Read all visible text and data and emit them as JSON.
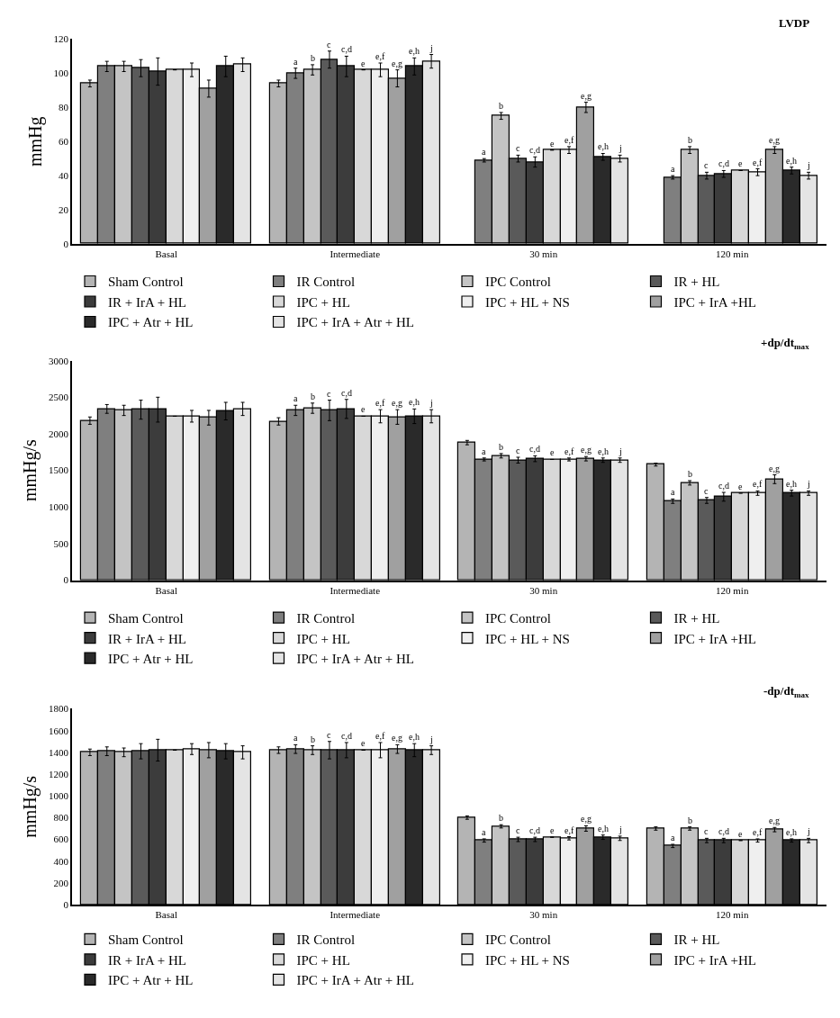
{
  "chart_data": [
    {
      "type": "bar",
      "title": "LVDP",
      "ylabel": "mmHg",
      "categories": [
        "Basal",
        "Intermediate",
        "30 min",
        "120 min"
      ],
      "ylim": [
        0,
        120
      ],
      "yticks": [
        0,
        20,
        40,
        60,
        80,
        100,
        120
      ],
      "legend": "bottom",
      "series": [
        {
          "name": "Sham Control",
          "color": "#b4b4b4",
          "values": [
            94,
            94,
            null,
            null
          ],
          "errors": [
            2,
            2,
            null,
            null
          ],
          "value_labels": [
            null,
            null,
            null,
            null
          ]
        },
        {
          "name": "IR Control",
          "color": "#7f7f7f",
          "values": [
            104,
            100,
            49,
            39
          ],
          "errors": [
            3,
            3,
            1,
            1
          ],
          "value_labels": [
            null,
            "a",
            "a",
            "a"
          ]
        },
        {
          "name": "IPC Control",
          "color": "#c4c4c4",
          "values": [
            104,
            102,
            75,
            55
          ],
          "errors": [
            3,
            3,
            2,
            2
          ],
          "value_labels": [
            null,
            "b",
            "b",
            "b"
          ]
        },
        {
          "name": "IR + HL",
          "color": "#5a5a5a",
          "values": [
            103,
            108,
            50,
            40
          ],
          "errors": [
            5,
            5,
            2,
            2
          ],
          "value_labels": [
            null,
            "c",
            "c",
            "c"
          ]
        },
        {
          "name": "IR + IrA + HL",
          "color": "#3c3c3c",
          "values": [
            101,
            104,
            48,
            41
          ],
          "errors": [
            8,
            6,
            3,
            2
          ],
          "value_labels": [
            null,
            "c,d",
            "c,d",
            "c,d"
          ]
        },
        {
          "name": "IPC + HL",
          "color": "#d8d8d8",
          "values": [
            102,
            102,
            55,
            43
          ],
          "errors": [
            null,
            null,
            null,
            null
          ],
          "value_labels": [
            null,
            "e",
            "e",
            "e"
          ]
        },
        {
          "name": "IPC + HL + NS",
          "color": "#efefef",
          "values": [
            102,
            102,
            55,
            42
          ],
          "errors": [
            4,
            4,
            2,
            2
          ],
          "value_labels": [
            null,
            "e,f",
            "e,f",
            "e,f"
          ]
        },
        {
          "name": "IPC + IrA +HL",
          "color": "#a0a0a0",
          "values": [
            91,
            97,
            80,
            55
          ],
          "errors": [
            5,
            5,
            3,
            2
          ],
          "value_labels": [
            null,
            "e,g",
            "e,g",
            "e,g"
          ]
        },
        {
          "name": "IPC + Atr + HL",
          "color": "#2a2a2a",
          "values": [
            104,
            104,
            51,
            43
          ],
          "errors": [
            6,
            5,
            2,
            2
          ],
          "value_labels": [
            null,
            "e,h",
            "e,h",
            "e,h"
          ]
        },
        {
          "name": "IPC + IrA + Atr + HL",
          "color": "#e4e4e4",
          "values": [
            105,
            107,
            50,
            40
          ],
          "errors": [
            4,
            4,
            2,
            2
          ],
          "value_labels": [
            null,
            "j",
            "j",
            "j"
          ]
        }
      ]
    },
    {
      "type": "bar",
      "title": "+dp/dt$_{max}$",
      "ylabel": "mmHg/s",
      "categories": [
        "Basal",
        "Intermediate",
        "30 min",
        "120 min"
      ],
      "ylim": [
        0,
        3000
      ],
      "yticks": [
        0,
        500,
        1000,
        1500,
        2000,
        2500,
        3000
      ],
      "legend": "bottom",
      "series": [
        {
          "name": "Sham Control",
          "color": "#b4b4b4",
          "values": [
            2180,
            2170,
            1880,
            1580
          ],
          "errors": [
            50,
            50,
            30,
            20
          ],
          "value_labels": [
            null,
            null,
            null,
            null
          ]
        },
        {
          "name": "IR Control",
          "color": "#7f7f7f",
          "values": [
            2340,
            2320,
            1650,
            1080
          ],
          "errors": [
            60,
            70,
            20,
            30
          ],
          "value_labels": [
            null,
            "a",
            "a",
            "a"
          ]
        },
        {
          "name": "IPC Control",
          "color": "#c4c4c4",
          "values": [
            2320,
            2350,
            1700,
            1330
          ],
          "errors": [
            70,
            70,
            30,
            30
          ],
          "value_labels": [
            null,
            "b",
            "b",
            "b"
          ]
        },
        {
          "name": "IR + HL",
          "color": "#5a5a5a",
          "values": [
            2330,
            2320,
            1640,
            1090
          ],
          "errors": [
            130,
            140,
            40,
            40
          ],
          "value_labels": [
            null,
            "c",
            "c",
            "c"
          ]
        },
        {
          "name": "IR + IrA + HL",
          "color": "#3c3c3c",
          "values": [
            2330,
            2340,
            1660,
            1140
          ],
          "errors": [
            170,
            130,
            40,
            60
          ],
          "value_labels": [
            null,
            "c,d",
            "c,d",
            "c,d"
          ]
        },
        {
          "name": "IPC + HL",
          "color": "#d8d8d8",
          "values": [
            2240,
            2240,
            1650,
            1190
          ],
          "errors": [
            null,
            null,
            null,
            null
          ],
          "value_labels": [
            null,
            "e",
            "e",
            "e"
          ]
        },
        {
          "name": "IPC + HL + NS",
          "color": "#efefef",
          "values": [
            2240,
            2240,
            1650,
            1190
          ],
          "errors": [
            80,
            90,
            20,
            30
          ],
          "value_labels": [
            null,
            "e,f",
            "e,f",
            "e,f"
          ]
        },
        {
          "name": "IPC + IrA +HL",
          "color": "#a0a0a0",
          "values": [
            2220,
            2230,
            1660,
            1380
          ],
          "errors": [
            100,
            100,
            30,
            60
          ],
          "value_labels": [
            null,
            "e,g",
            "e,g",
            "e,g"
          ]
        },
        {
          "name": "IPC + Atr + HL",
          "color": "#2a2a2a",
          "values": [
            2310,
            2240,
            1640,
            1190
          ],
          "errors": [
            120,
            100,
            30,
            40
          ],
          "value_labels": [
            null,
            "e,h",
            "e,h",
            "e,h"
          ]
        },
        {
          "name": "IPC + IrA + Atr + HL",
          "color": "#e4e4e4",
          "values": [
            2340,
            2240,
            1640,
            1190
          ],
          "errors": [
            90,
            90,
            30,
            30
          ],
          "value_labels": [
            null,
            "j",
            "j",
            "j"
          ]
        }
      ]
    },
    {
      "type": "bar",
      "title": "-dp/dt$_{max}$",
      "ylabel": "mmHg/s",
      "categories": [
        "Basal",
        "Intermediate",
        "30 min",
        "120 min"
      ],
      "ylim": [
        0,
        1800
      ],
      "yticks": [
        0,
        200,
        400,
        600,
        800,
        1000,
        1200,
        1400,
        1600,
        1800
      ],
      "legend": "bottom",
      "series": [
        {
          "name": "Sham Control",
          "color": "#b4b4b4",
          "values": [
            1400,
            1420,
            800,
            700
          ],
          "errors": [
            30,
            30,
            15,
            15
          ],
          "value_labels": [
            null,
            null,
            null,
            null
          ]
        },
        {
          "name": "IR Control",
          "color": "#7f7f7f",
          "values": [
            1410,
            1430,
            590,
            540
          ],
          "errors": [
            40,
            40,
            15,
            15
          ],
          "value_labels": [
            null,
            "a",
            "a",
            "a"
          ]
        },
        {
          "name": "IPC Control",
          "color": "#c4c4c4",
          "values": [
            1400,
            1420,
            720,
            700
          ],
          "errors": [
            40,
            40,
            15,
            15
          ],
          "value_labels": [
            null,
            "b",
            "b",
            "b"
          ]
        },
        {
          "name": "IR + HL",
          "color": "#5a5a5a",
          "values": [
            1410,
            1420,
            600,
            590
          ],
          "errors": [
            70,
            80,
            20,
            20
          ],
          "value_labels": [
            null,
            "c",
            "c",
            "c"
          ]
        },
        {
          "name": "IR + IrA + HL",
          "color": "#3c3c3c",
          "values": [
            1420,
            1420,
            600,
            590
          ],
          "errors": [
            100,
            70,
            20,
            20
          ],
          "value_labels": [
            null,
            "c,d",
            "c,d",
            "c,d"
          ]
        },
        {
          "name": "IPC + HL",
          "color": "#d8d8d8",
          "values": [
            1420,
            1420,
            620,
            590
          ],
          "errors": [
            null,
            null,
            null,
            null
          ],
          "value_labels": [
            null,
            "e",
            "e",
            "e"
          ]
        },
        {
          "name": "IPC + HL + NS",
          "color": "#efefef",
          "values": [
            1430,
            1420,
            610,
            590
          ],
          "errors": [
            50,
            70,
            15,
            15
          ],
          "value_labels": [
            null,
            "e,f",
            "e,f",
            "e,f"
          ]
        },
        {
          "name": "IPC + IrA +HL",
          "color": "#a0a0a0",
          "values": [
            1420,
            1430,
            700,
            690
          ],
          "errors": [
            70,
            40,
            25,
            20
          ],
          "value_labels": [
            null,
            "e,g",
            "e,g",
            "e,g"
          ]
        },
        {
          "name": "IPC + Atr + HL",
          "color": "#2a2a2a",
          "values": [
            1410,
            1420,
            620,
            590
          ],
          "errors": [
            70,
            60,
            20,
            15
          ],
          "value_labels": [
            null,
            "e,h",
            "e,h",
            "e,h"
          ]
        },
        {
          "name": "IPC + IrA + Atr + HL",
          "color": "#e4e4e4",
          "values": [
            1400,
            1420,
            610,
            590
          ],
          "errors": [
            60,
            40,
            20,
            20
          ],
          "value_labels": [
            null,
            "j",
            "j",
            "j"
          ]
        }
      ]
    }
  ]
}
